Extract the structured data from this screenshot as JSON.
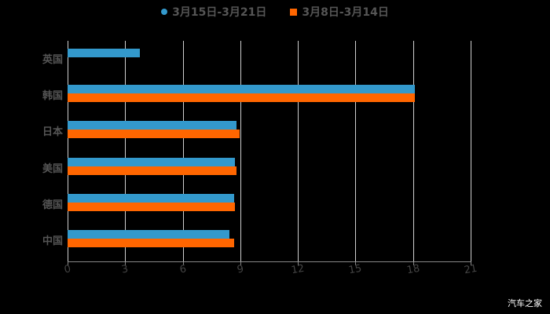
{
  "chart_data": {
    "type": "bar",
    "orientation": "horizontal",
    "categories": [
      "英国",
      "韩国",
      "日本",
      "美国",
      "德国",
      "中国"
    ],
    "series": [
      {
        "name": "3月15日-3月21日",
        "color": "#3399cc",
        "values": [
          3.77,
          18.1,
          8.8,
          8.7,
          8.68,
          8.43
        ]
      },
      {
        "name": "3月8日-3月14日",
        "color": "#ff6600",
        "values": [
          null,
          18.1,
          8.96,
          8.8,
          8.7,
          8.68
        ]
      }
    ],
    "xticks": [
      "0",
      "3",
      "6",
      "9",
      "12",
      "15",
      "18",
      "21"
    ],
    "xlim": [
      0,
      21
    ],
    "grid": true,
    "legend_position": "top"
  },
  "legend": {
    "s1": "3月15日-3月21日",
    "s2": "3月8日-3月14日"
  },
  "watermark": "汽车之家"
}
